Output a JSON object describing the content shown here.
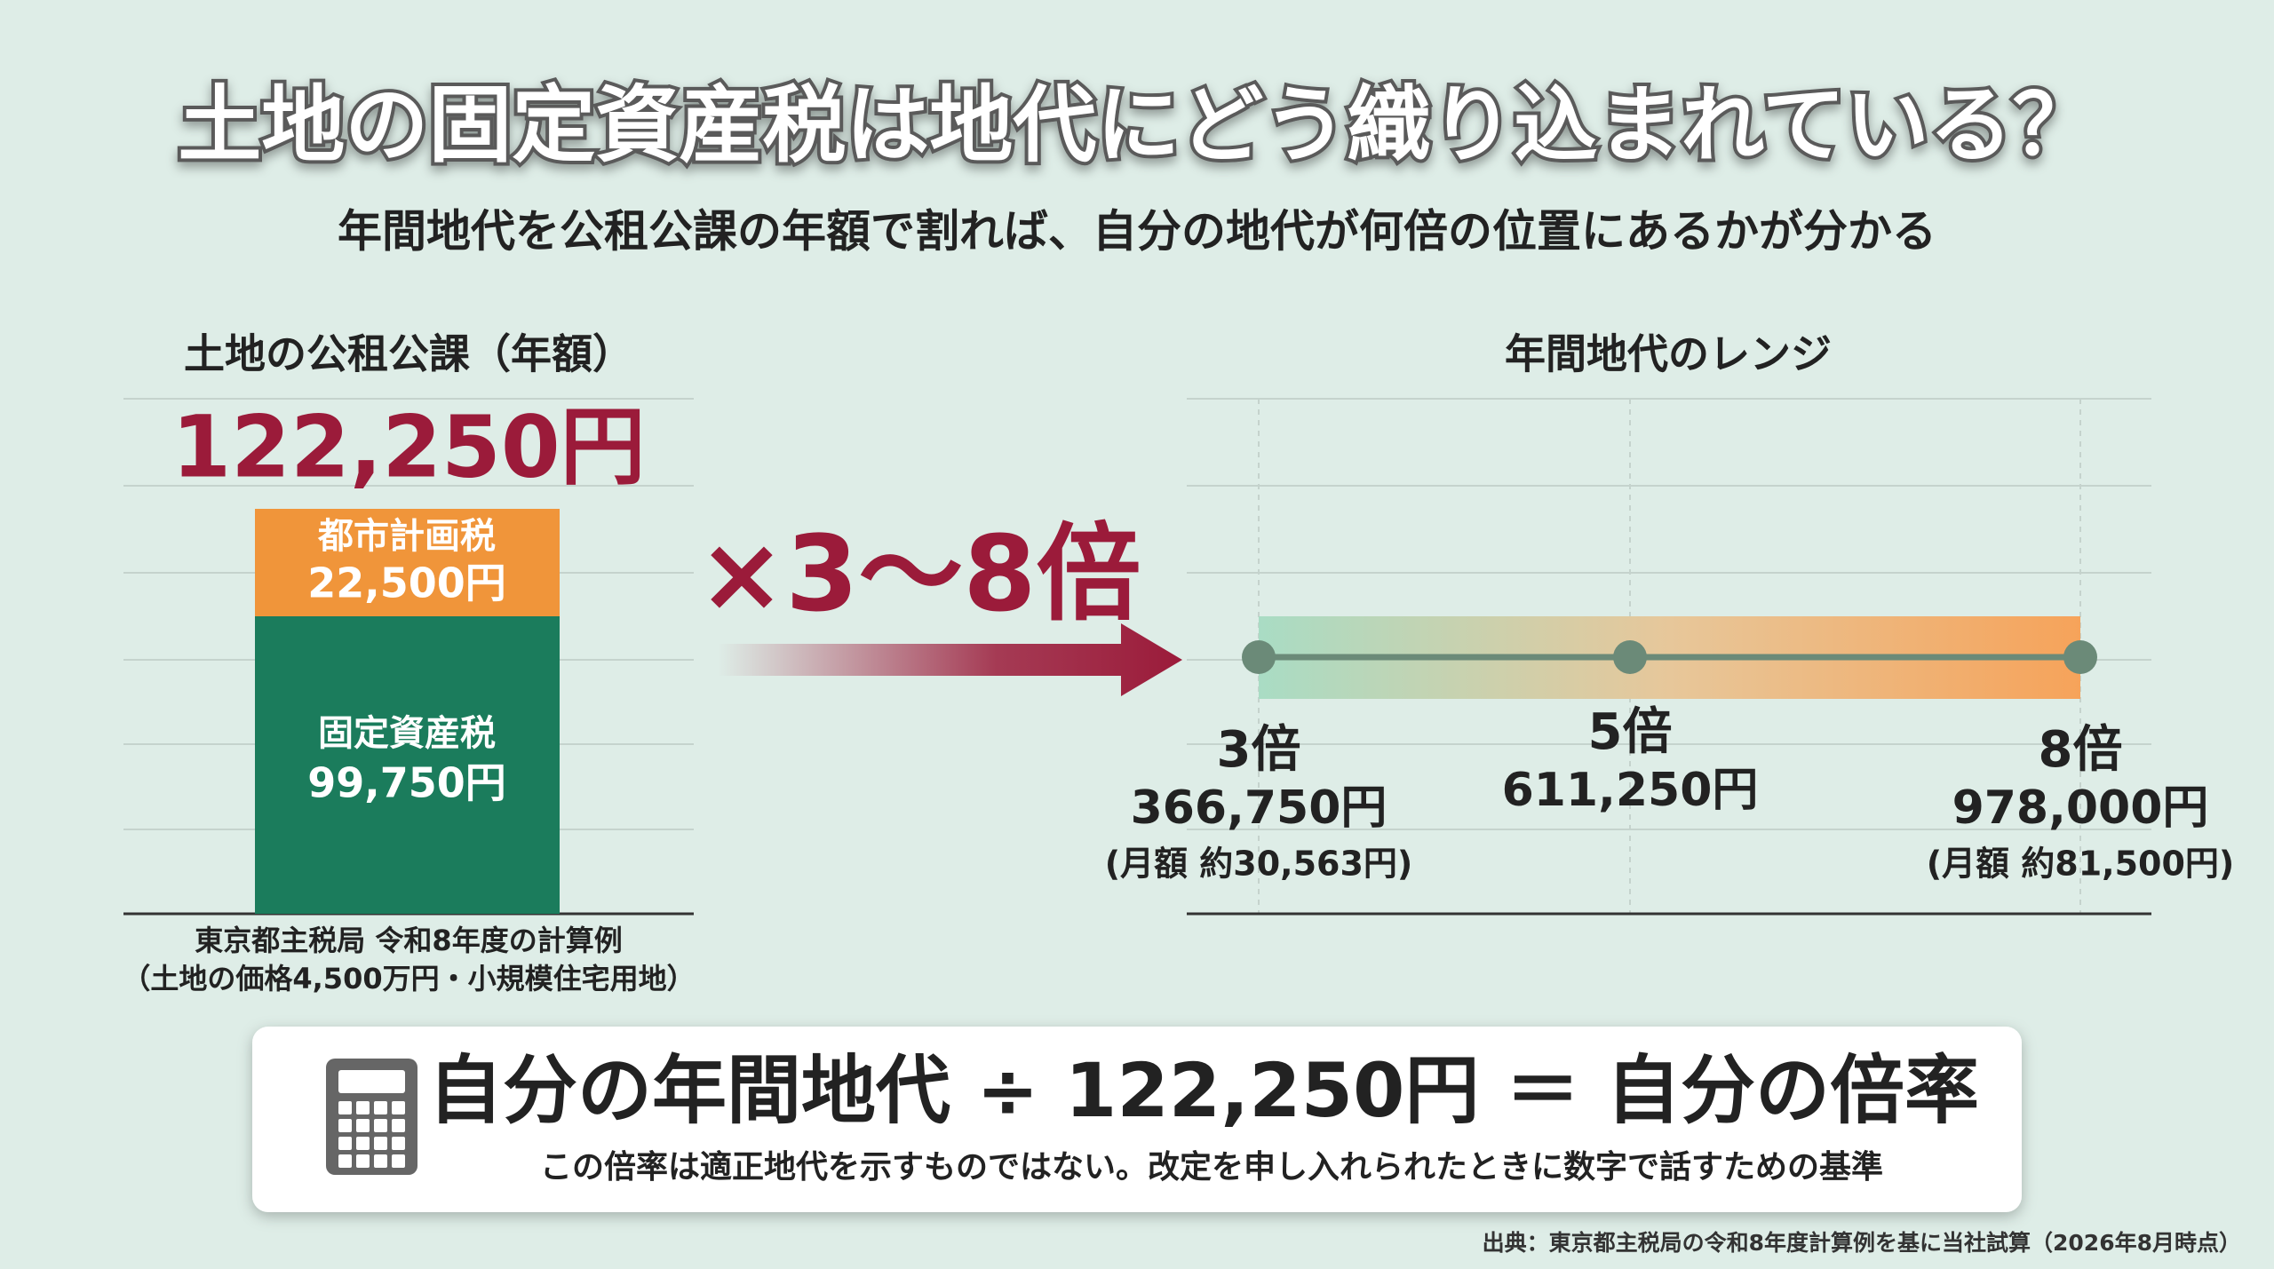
{
  "title": "土地の固定資産税は地代にどう織り込まれている？",
  "subtitle": "年間地代を公租公課の年額で割れば、自分の地代が何倍の位置にあるかが分かる",
  "left": {
    "heading": "土地の公租公課（年額）",
    "total": "122,250円",
    "segments": [
      {
        "name": "都市計画税",
        "amount": "22,500円"
      },
      {
        "name": "固定資産税",
        "amount": "99,750円"
      }
    ],
    "caption": [
      "東京都主税局 令和8年度の計算例",
      "（土地の価格4,500万円・小規模住宅用地）"
    ]
  },
  "multiplier": "×3〜8倍",
  "right": {
    "heading": "年間地代のレンジ",
    "points": [
      {
        "multiple": "3倍",
        "amount": "366,750円",
        "monthly": "(月額 約30,563円)"
      },
      {
        "multiple": "5倍",
        "amount": "611,250円"
      },
      {
        "multiple": "8倍",
        "amount": "978,000円",
        "monthly": "(月額 約81,500円)"
      }
    ]
  },
  "formula": {
    "expression": "自分の年間地代 ÷ 122,250円 ＝ 自分の倍率",
    "note": "この倍率は適正地代を示すものではない。改定を申し入れられたときに数字で話すための基準"
  },
  "source": "出典：東京都主税局の令和8年度計算例を基に当社試算（2026年8月時点）"
}
